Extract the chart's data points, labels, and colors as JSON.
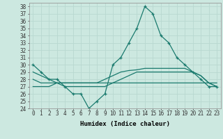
{
  "title": "",
  "xlabel": "Humidex (Indice chaleur)",
  "x": [
    0,
    1,
    2,
    3,
    4,
    5,
    6,
    7,
    8,
    9,
    10,
    11,
    12,
    13,
    14,
    15,
    16,
    17,
    18,
    19,
    20,
    21,
    22,
    23
  ],
  "line_main": [
    30,
    29,
    28,
    28,
    27,
    26,
    26,
    24,
    25,
    26,
    30,
    31,
    33,
    35,
    38,
    37,
    34,
    33,
    31,
    30,
    29,
    28,
    27,
    27
  ],
  "line_a": [
    29,
    28.5,
    28,
    27.5,
    27,
    27,
    27,
    27,
    27,
    27,
    27.5,
    28,
    28.5,
    29,
    29,
    29,
    29,
    29,
    29,
    29,
    29,
    28.5,
    27.5,
    27
  ],
  "line_b": [
    28,
    27.5,
    27.5,
    27.5,
    27.5,
    27.5,
    27.5,
    27.5,
    27.5,
    27.5,
    27.5,
    27.5,
    27.5,
    27.5,
    27.5,
    27.5,
    27.5,
    27.5,
    27.5,
    27.5,
    27.5,
    27.5,
    27.5,
    27.5
  ],
  "line_c": [
    27,
    27,
    27,
    27.5,
    27.5,
    27.5,
    27.5,
    27.5,
    27.5,
    28,
    28.5,
    29,
    29.2,
    29.3,
    29.5,
    29.5,
    29.5,
    29.5,
    29.5,
    29.5,
    29,
    28.5,
    27.5,
    27
  ],
  "ylim": [
    24,
    38.5
  ],
  "xlim": [
    -0.5,
    23.5
  ],
  "bg_color": "#cce8e0",
  "line_color": "#1a7a6e",
  "grid_color": "#b8d8d0",
  "yticks": [
    24,
    25,
    26,
    27,
    28,
    29,
    30,
    31,
    32,
    33,
    34,
    35,
    36,
    37,
    38
  ],
  "xticks": [
    0,
    1,
    2,
    3,
    4,
    5,
    6,
    7,
    8,
    9,
    10,
    11,
    12,
    13,
    14,
    15,
    16,
    17,
    18,
    19,
    20,
    21,
    22,
    23
  ],
  "tick_fontsize": 5.5,
  "xlabel_fontsize": 6.5
}
